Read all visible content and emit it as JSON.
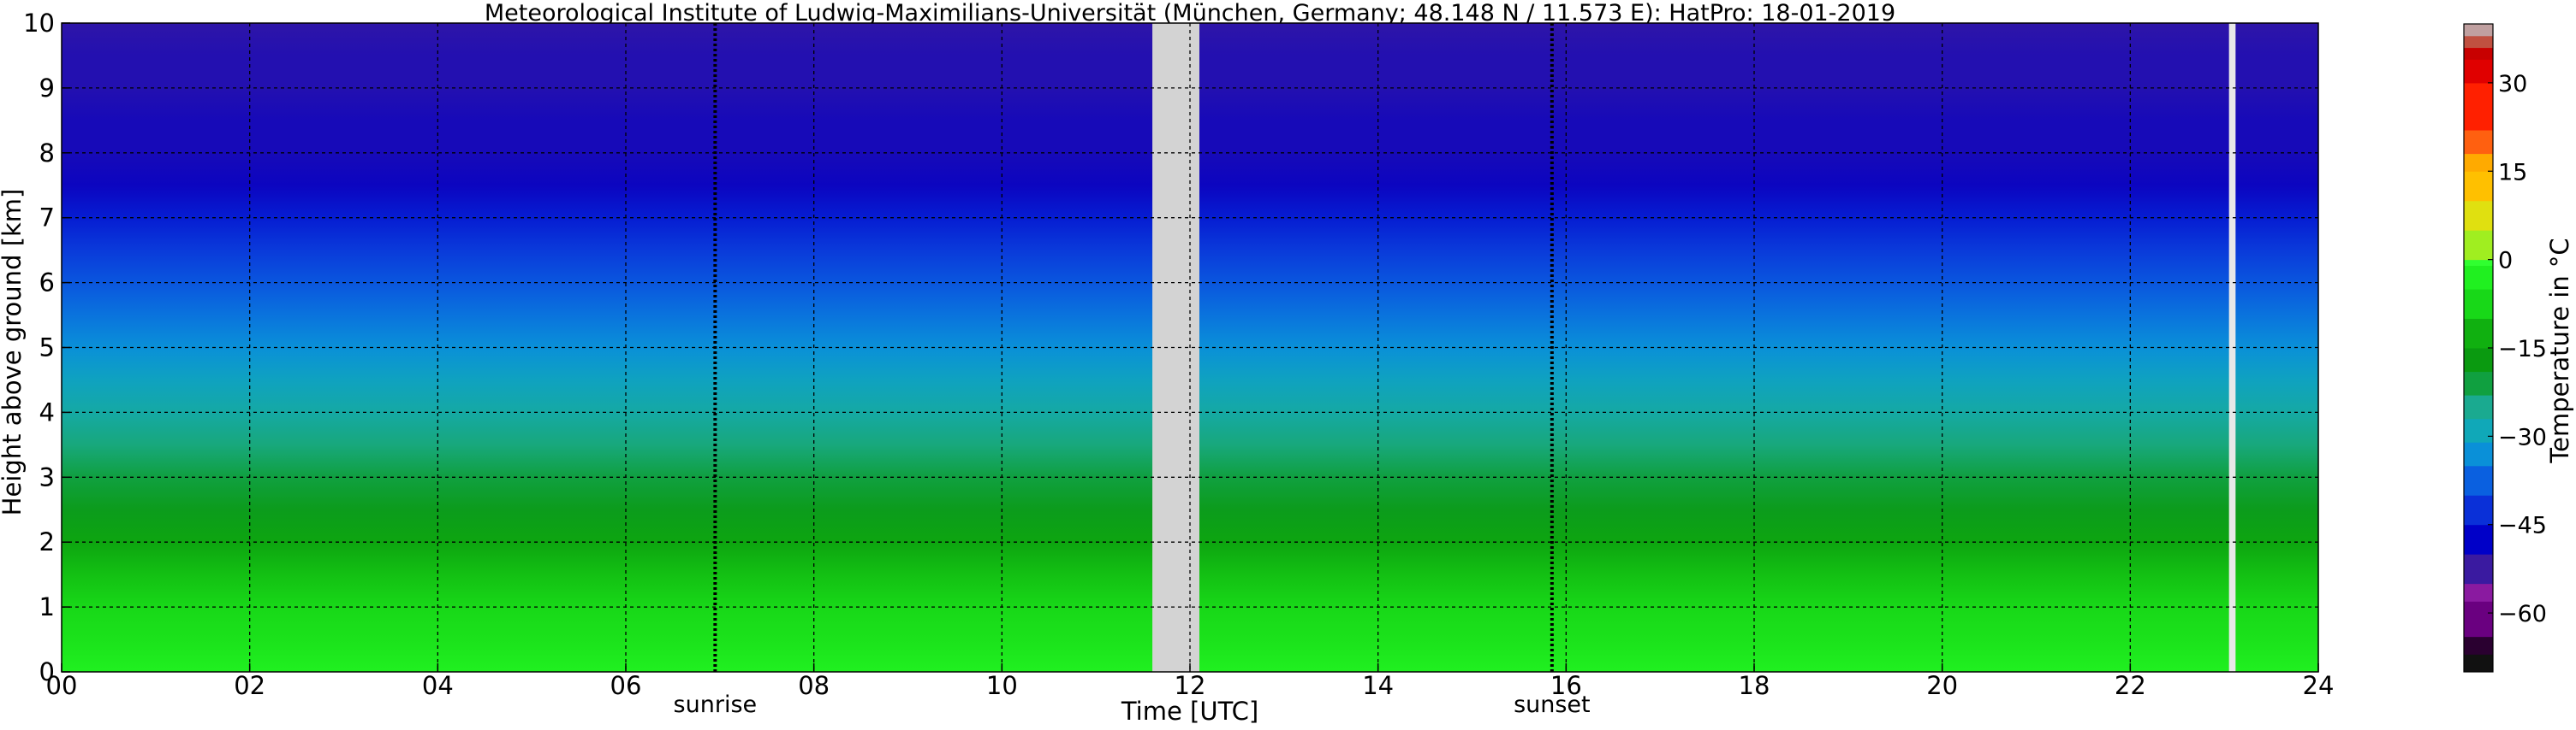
{
  "chart_data": {
    "type": "heatmap",
    "title": "Meteorological Institute of Ludwig-Maximilians-Universität (München, Germany; 48.148 N / 11.573 E):    HatPro: 18-01-2019",
    "xlabel": "Time [UTC]",
    "ylabel": "Height above ground [km]",
    "xlim": [
      0,
      24
    ],
    "ylim": [
      0,
      10
    ],
    "x_ticks": [
      "00",
      "02",
      "04",
      "06",
      "08",
      "10",
      "12",
      "14",
      "16",
      "18",
      "20",
      "22",
      "24"
    ],
    "y_ticks": [
      "0",
      "1",
      "2",
      "3",
      "4",
      "5",
      "6",
      "7",
      "8",
      "9",
      "10"
    ],
    "grid": true,
    "annotations": [
      {
        "label": "sunrise",
        "x": 6.95
      },
      {
        "label": "sunset",
        "x": 15.85
      }
    ],
    "missing_data": [
      {
        "x_start": 11.6,
        "x_end": 12.1
      },
      {
        "x_start": 23.05,
        "x_end": 23.12
      }
    ],
    "colorbar": {
      "label": "Temperature in °C",
      "range": [
        -70,
        40
      ],
      "ticks": [
        "30",
        "15",
        "0",
        "−15",
        "−30",
        "−45",
        "−60"
      ],
      "tick_values": [
        30,
        15,
        0,
        -15,
        -30,
        -45,
        -60
      ]
    },
    "temperature_profile": {
      "height_km": [
        0,
        0.5,
        1.0,
        1.5,
        2.0,
        2.5,
        3.0,
        3.5,
        4.0,
        4.5,
        5.0,
        5.5,
        6.0,
        6.5,
        7.0,
        7.5,
        8.0,
        8.5,
        9.0,
        9.5,
        10.0
      ],
      "temperature_c": [
        -5,
        -8,
        -10,
        -13,
        -17,
        -20,
        -23,
        -26,
        -29,
        -32,
        -35,
        -38,
        -41,
        -44,
        -47,
        -51,
        -52,
        -52,
        -53,
        -53,
        -54
      ]
    }
  }
}
